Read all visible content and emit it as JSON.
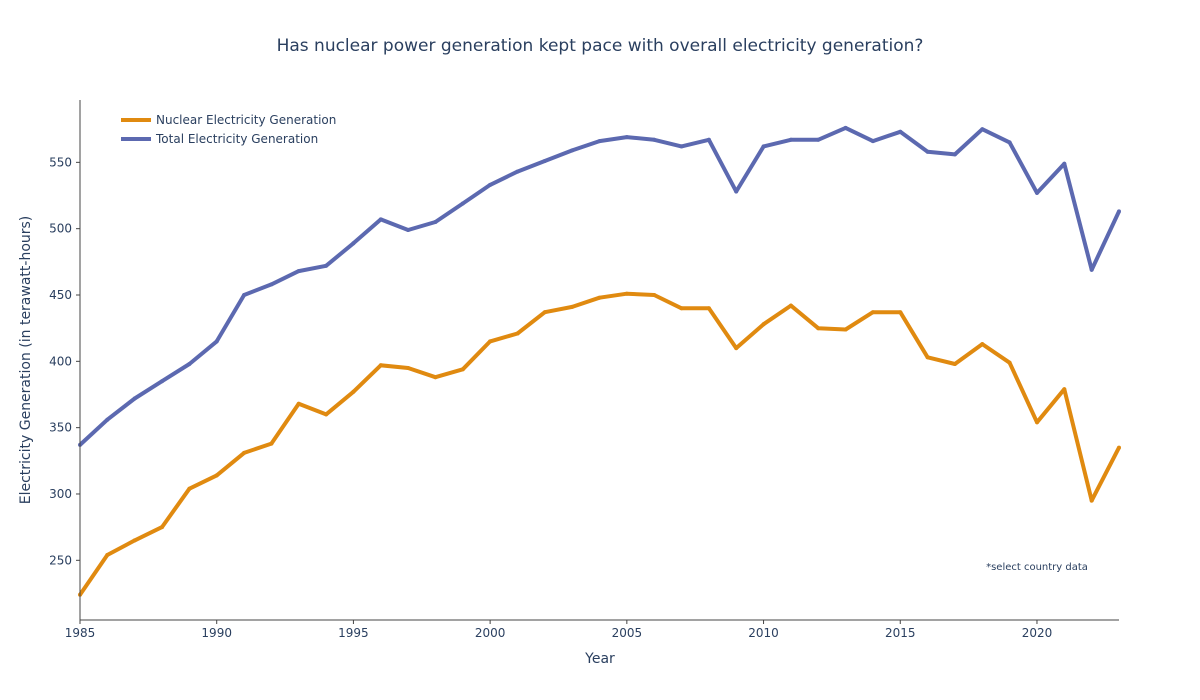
{
  "chart_data": {
    "type": "line",
    "title": "Has nuclear power generation kept pace with overall electricity generation?",
    "xlabel": "Year",
    "ylabel": "Electricity Generation (in terawatt-hours)",
    "xlim": [
      1985,
      2023
    ],
    "ylim": [
      205,
      597
    ],
    "x_ticks": [
      1985,
      1990,
      1995,
      2000,
      2005,
      2010,
      2015,
      2020
    ],
    "y_ticks": [
      250,
      300,
      350,
      400,
      450,
      500,
      550
    ],
    "grid": false,
    "legend_position": "top-left",
    "annotation": "*select country data",
    "x": [
      1985,
      1986,
      1987,
      1988,
      1989,
      1990,
      1991,
      1992,
      1993,
      1994,
      1995,
      1996,
      1997,
      1998,
      1999,
      2000,
      2001,
      2002,
      2003,
      2004,
      2005,
      2006,
      2007,
      2008,
      2009,
      2010,
      2011,
      2012,
      2013,
      2014,
      2015,
      2016,
      2017,
      2018,
      2019,
      2020,
      2021,
      2022,
      2023
    ],
    "series": [
      {
        "name": "Nuclear Electricity Generation",
        "color": "#e08a10",
        "values": [
          224,
          254,
          265,
          275,
          304,
          314,
          331,
          338,
          368,
          360,
          377,
          397,
          395,
          388,
          394,
          415,
          421,
          437,
          441,
          448,
          451,
          450,
          440,
          440,
          410,
          428,
          442,
          425,
          424,
          437,
          437,
          403,
          398,
          413,
          399,
          354,
          379,
          295,
          335
        ]
      },
      {
        "name": "Total Electricity Generation",
        "color": "#5c69b0",
        "values": [
          337,
          356,
          372,
          385,
          398,
          415,
          450,
          458,
          468,
          472,
          489,
          507,
          499,
          505,
          519,
          533,
          543,
          551,
          559,
          566,
          569,
          567,
          562,
          567,
          528,
          562,
          567,
          567,
          576,
          566,
          573,
          558,
          556,
          575,
          565,
          527,
          549,
          469,
          513
        ]
      }
    ]
  }
}
